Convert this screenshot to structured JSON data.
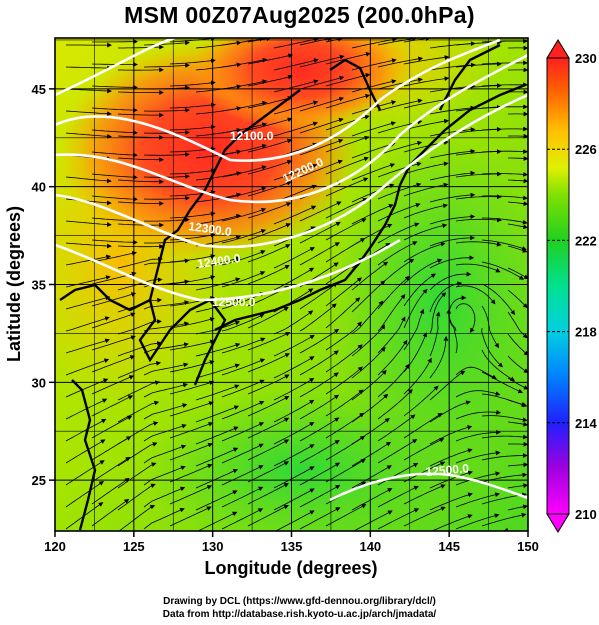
{
  "title": "MSM 00Z07Aug2025 (200.0hPa)",
  "x_axis": {
    "label": "Longitude (degrees)",
    "range": [
      120,
      150
    ],
    "ticks": [
      "120",
      "125",
      "130",
      "135",
      "140",
      "145",
      "150"
    ]
  },
  "y_axis": {
    "label": "Latitude  (degrees)",
    "range": [
      22.4,
      47.6
    ],
    "ticks": [
      "25",
      "30",
      "35",
      "40",
      "45"
    ]
  },
  "colorbar": {
    "range": [
      210,
      230
    ],
    "ticks": [
      "210",
      "214",
      "218",
      "222",
      "226",
      "230"
    ],
    "colors": [
      "#ff00ff",
      "#a000e0",
      "#2020ff",
      "#0080ff",
      "#00d0e0",
      "#00e090",
      "#20d020",
      "#80e000",
      "#e0f000",
      "#ffc000",
      "#ff6000",
      "#ff2020"
    ]
  },
  "contours": [
    {
      "label": "12100.0"
    },
    {
      "label": "12200.0"
    },
    {
      "label": "12300.0"
    },
    {
      "label": "12400.0"
    },
    {
      "label": "12500.0"
    },
    {
      "label": "12500.0"
    }
  ],
  "footer": {
    "line1": "Drawing by DCL (https://www.gfd-dennou.org/library/dcl/)",
    "line2": "Data from http://database.rish.kyoto-u.ac.jp/arch/jmadata/"
  }
}
